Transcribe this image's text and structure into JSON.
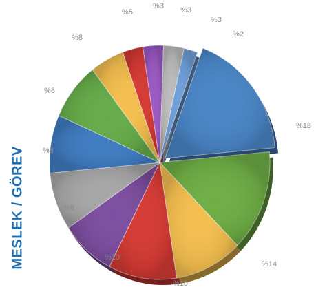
{
  "side_title": "MESLEK / GÖREV",
  "chart_data": {
    "type": "pie",
    "title": "",
    "labels_format": "percent-prefix",
    "series": [
      {
        "values": [
          18,
          14,
          10,
          10,
          8,
          8,
          8,
          8,
          5,
          3,
          3,
          3,
          2
        ]
      }
    ],
    "slices": [
      {
        "value": 18,
        "label": "%18",
        "color": "#4a86c8"
      },
      {
        "value": 14,
        "label": "%14",
        "color": "#6fae45"
      },
      {
        "value": 10,
        "label": "%10",
        "color": "#f5bf4f"
      },
      {
        "value": 10,
        "label": "%10",
        "color": "#d63a34"
      },
      {
        "value": 8,
        "label": "%8",
        "color": "#7d4ea0"
      },
      {
        "value": 8,
        "label": "%8",
        "color": "#a7a7a7"
      },
      {
        "value": 8,
        "label": "%8",
        "color": "#3f7cc2"
      },
      {
        "value": 8,
        "label": "%8",
        "color": "#66ac4a"
      },
      {
        "value": 5,
        "label": "%5",
        "color": "#f5bf4f"
      },
      {
        "value": 3,
        "label": "%3",
        "color": "#d63a34"
      },
      {
        "value": 3,
        "label": "%3",
        "color": "#9b59c4"
      },
      {
        "value": 3,
        "label": "%3",
        "color": "#bdbdbd"
      },
      {
        "value": 2,
        "label": "%2",
        "color": "#6fa0da"
      }
    ],
    "legend": "none"
  }
}
